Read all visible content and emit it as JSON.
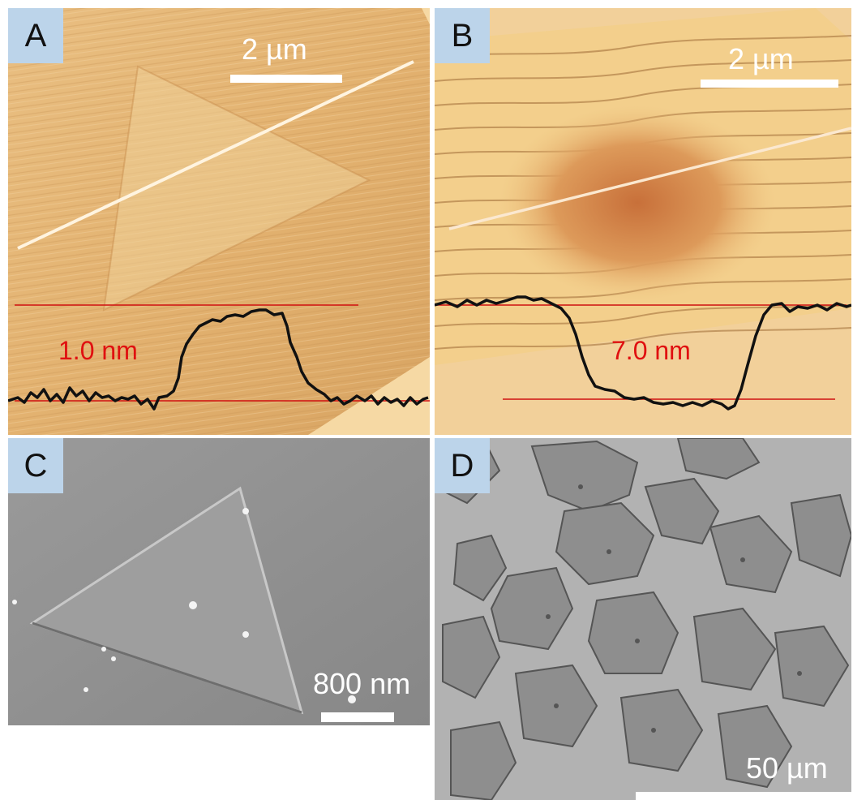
{
  "figure": {
    "panels": [
      {
        "letter": "A",
        "scale_bar": "2 µm",
        "profile_height": "1.0 nm"
      },
      {
        "letter": "B",
        "scale_bar": "2 µm",
        "profile_height": "7.0 nm"
      },
      {
        "letter": "C",
        "scale_bar": "800 nm"
      },
      {
        "letter": "D",
        "scale_bar": "50 µm"
      }
    ]
  },
  "colors": {
    "afm_base": "#e6b877",
    "profile_line": "#111111",
    "reference_line": "#d01010",
    "label_red": "#e01010",
    "panel_tag": "#bcd4ea",
    "sem_gray": "#8f8f8f",
    "optical_gray": "#b4b4b4"
  }
}
